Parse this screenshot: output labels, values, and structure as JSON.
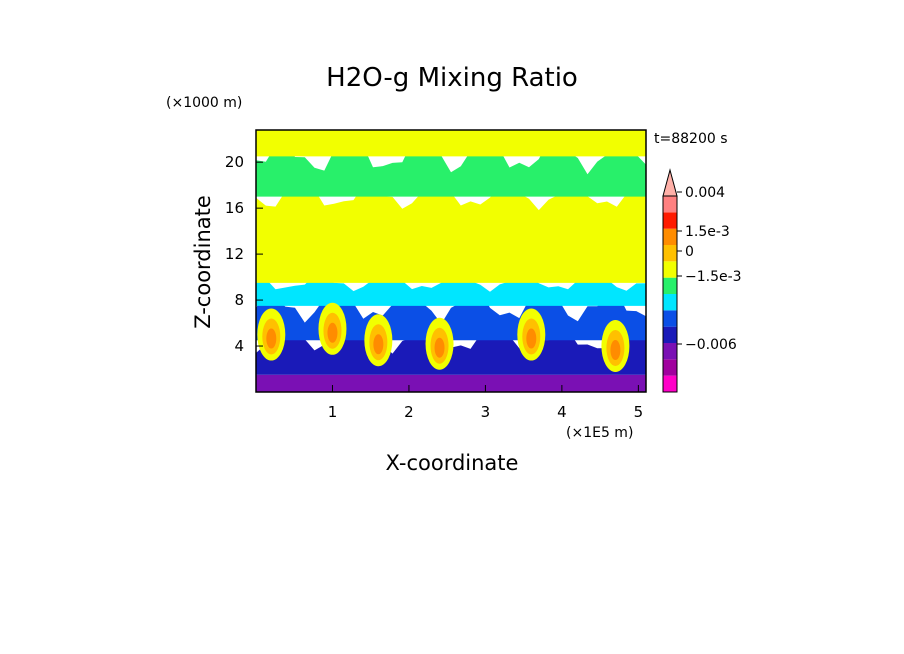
{
  "chart_data": {
    "type": "heatmap",
    "title": "H2O-g Mixing Ratio",
    "time_label": "t=88200 s",
    "xlabel": "X-coordinate",
    "x_unit": "(×1E5 m)",
    "ylabel": "Z-coordinate",
    "y_unit": "(×1000 m)",
    "xlim": [
      0,
      5.1
    ],
    "ylim": [
      0,
      22.8
    ],
    "x_ticks": [
      "1",
      "2",
      "3",
      "4",
      "5"
    ],
    "y_ticks": [
      "4",
      "8",
      "12",
      "16",
      "20"
    ],
    "colorbar": {
      "levels": [
        {
          "color": "#ff00c8"
        },
        {
          "color": "#a0009e"
        },
        {
          "color": "#7a10b4"
        },
        {
          "color": "#1a1ab8"
        },
        {
          "color": "#0b4fe6"
        },
        {
          "color": "#00e6ff"
        },
        {
          "color": "#28f06a"
        },
        {
          "color": "#f2ff00"
        },
        {
          "color": "#ffc000"
        },
        {
          "color": "#ff8c00"
        },
        {
          "color": "#ff1a00"
        },
        {
          "color": "#ff8080"
        },
        {
          "color": "#ffb0a8"
        }
      ],
      "tick_labels": [
        "0.004",
        "1.5e-3",
        "0",
        "−1.5e-3",
        "−0.006"
      ],
      "tick_values": [
        0.004,
        0.0015,
        0,
        -0.0015,
        -0.006
      ]
    },
    "bands": [
      {
        "z_from": 0,
        "z_to": 1.5,
        "dominant_level": 2
      },
      {
        "z_from": 1.5,
        "z_to": 4.5,
        "dominant_level": 3
      },
      {
        "z_from": 4.5,
        "z_to": 7.5,
        "dominant_level": 4
      },
      {
        "z_from": 7.5,
        "z_to": 9.5,
        "dominant_level": 5
      },
      {
        "z_from": 9.5,
        "z_to": 17,
        "dominant_level": 7
      },
      {
        "z_from": 17,
        "z_to": 20.5,
        "dominant_level": 6
      },
      {
        "z_from": 20.5,
        "z_to": 22.8,
        "dominant_level": 7
      }
    ],
    "plumes": [
      {
        "x": 0.2,
        "z": 5.0
      },
      {
        "x": 1.0,
        "z": 5.5
      },
      {
        "x": 1.6,
        "z": 4.5
      },
      {
        "x": 2.4,
        "z": 4.2
      },
      {
        "x": 3.6,
        "z": 5.0
      },
      {
        "x": 4.7,
        "z": 4.0
      }
    ]
  }
}
